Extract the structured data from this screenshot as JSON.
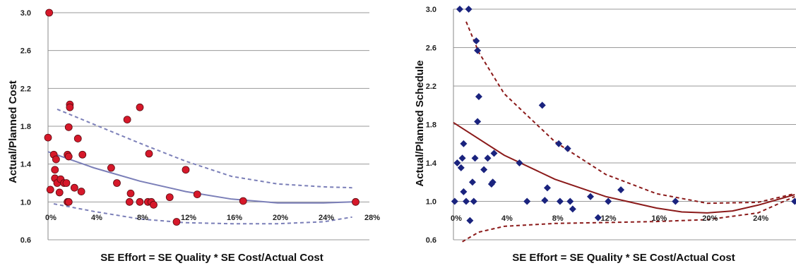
{
  "chart_data": [
    {
      "type": "scatter",
      "title": "",
      "xlabel": "SE Effort = SE Quality * SE Cost/Actual Cost",
      "ylabel": "Actual/Planned Cost",
      "xlim": [
        0,
        28
      ],
      "ylim": [
        0.6,
        3.0
      ],
      "x_ticks": [
        0,
        4,
        8,
        12,
        16,
        20,
        24,
        28
      ],
      "x_tick_labels": [
        "0%",
        "4%",
        "8%",
        "12%",
        "16%",
        "20%",
        "24%",
        "28%"
      ],
      "y_ticks": [
        0.6,
        1.0,
        1.4,
        1.8,
        2.2,
        2.6,
        3.0
      ],
      "y_tick_labels": [
        "0.6",
        "1.0",
        "1.4",
        "1.8",
        "2.2",
        "2.6",
        "3.0"
      ],
      "grid": "horizontal",
      "marker": "circle",
      "marker_color": "#d6182a",
      "fit_color": "#7b7fb8",
      "points": [
        {
          "x": 0.1,
          "y": 3.0
        },
        {
          "x": 0.0,
          "y": 1.68
        },
        {
          "x": 0.2,
          "y": 1.13
        },
        {
          "x": 0.5,
          "y": 1.5
        },
        {
          "x": 0.6,
          "y": 1.34
        },
        {
          "x": 0.6,
          "y": 1.25
        },
        {
          "x": 0.7,
          "y": 1.45
        },
        {
          "x": 0.8,
          "y": 1.2
        },
        {
          "x": 1.0,
          "y": 1.1
        },
        {
          "x": 1.1,
          "y": 1.24
        },
        {
          "x": 1.4,
          "y": 1.2
        },
        {
          "x": 1.6,
          "y": 1.2
        },
        {
          "x": 1.7,
          "y": 1.5
        },
        {
          "x": 1.7,
          "y": 1.0
        },
        {
          "x": 1.8,
          "y": 1.0
        },
        {
          "x": 1.8,
          "y": 1.79
        },
        {
          "x": 1.8,
          "y": 1.48
        },
        {
          "x": 1.9,
          "y": 2.03
        },
        {
          "x": 1.9,
          "y": 2.0
        },
        {
          "x": 2.3,
          "y": 1.15
        },
        {
          "x": 2.6,
          "y": 1.67
        },
        {
          "x": 2.9,
          "y": 1.11
        },
        {
          "x": 3.0,
          "y": 1.5
        },
        {
          "x": 5.5,
          "y": 1.36
        },
        {
          "x": 6.0,
          "y": 1.2
        },
        {
          "x": 6.9,
          "y": 1.87
        },
        {
          "x": 7.1,
          "y": 1.0
        },
        {
          "x": 7.2,
          "y": 1.09
        },
        {
          "x": 8.0,
          "y": 1.0
        },
        {
          "x": 8.0,
          "y": 2.0
        },
        {
          "x": 8.7,
          "y": 1.0
        },
        {
          "x": 8.8,
          "y": 1.51
        },
        {
          "x": 9.0,
          "y": 1.0
        },
        {
          "x": 9.2,
          "y": 0.97
        },
        {
          "x": 10.6,
          "y": 1.05
        },
        {
          "x": 11.2,
          "y": 0.79
        },
        {
          "x": 12.0,
          "y": 1.34
        },
        {
          "x": 13.0,
          "y": 1.08
        },
        {
          "x": 17.0,
          "y": 1.01
        },
        {
          "x": 26.8,
          "y": 1.0
        }
      ],
      "fit_line": [
        [
          0,
          1.53
        ],
        [
          4,
          1.36
        ],
        [
          8,
          1.22
        ],
        [
          12,
          1.11
        ],
        [
          16,
          1.03
        ],
        [
          20,
          0.99
        ],
        [
          24,
          0.99
        ],
        [
          26.5,
          1.0
        ]
      ],
      "upper_bound": [
        [
          0.8,
          1.98
        ],
        [
          4,
          1.82
        ],
        [
          8,
          1.62
        ],
        [
          12,
          1.43
        ],
        [
          16,
          1.27
        ],
        [
          20,
          1.19
        ],
        [
          24,
          1.16
        ],
        [
          26.5,
          1.15
        ]
      ],
      "lower_bound": [
        [
          0.5,
          0.98
        ],
        [
          4,
          0.9
        ],
        [
          8,
          0.82
        ],
        [
          12,
          0.78
        ],
        [
          16,
          0.77
        ],
        [
          20,
          0.77
        ],
        [
          24,
          0.79
        ],
        [
          26.5,
          0.84
        ]
      ]
    },
    {
      "type": "scatter",
      "title": "",
      "xlabel": "SE Effort = SE Quality * SE Cost/Actual Cost",
      "ylabel": "Actual/Planned Schedule",
      "xlim": [
        0,
        27
      ],
      "ylim": [
        0.6,
        3.0
      ],
      "x_ticks": [
        0,
        4,
        8,
        12,
        16,
        20,
        24
      ],
      "x_tick_labels": [
        "0%",
        "4%",
        "8%",
        "12%",
        "16%",
        "20%",
        "24%"
      ],
      "y_ticks": [
        0.6,
        1.0,
        1.4,
        1.8,
        2.2,
        2.6,
        3.0
      ],
      "y_tick_labels": [
        "0.6",
        "1.0",
        "1.4",
        "1.8",
        "2.2",
        "2.6",
        "3.0"
      ],
      "grid": "horizontal",
      "marker": "diamond",
      "marker_color": "#1a237e",
      "fit_color": "#8b1a1a",
      "points": [
        {
          "x": 0.1,
          "y": 1.0
        },
        {
          "x": 0.3,
          "y": 1.4
        },
        {
          "x": 0.5,
          "y": 3.0
        },
        {
          "x": 0.6,
          "y": 1.35
        },
        {
          "x": 0.7,
          "y": 1.45
        },
        {
          "x": 0.8,
          "y": 1.6
        },
        {
          "x": 0.8,
          "y": 1.1
        },
        {
          "x": 1.0,
          "y": 1.0
        },
        {
          "x": 1.2,
          "y": 3.0
        },
        {
          "x": 1.3,
          "y": 0.8
        },
        {
          "x": 1.5,
          "y": 1.2
        },
        {
          "x": 1.6,
          "y": 1.0
        },
        {
          "x": 1.7,
          "y": 1.45
        },
        {
          "x": 1.8,
          "y": 2.67
        },
        {
          "x": 1.9,
          "y": 2.57
        },
        {
          "x": 1.9,
          "y": 1.83
        },
        {
          "x": 2.0,
          "y": 2.09
        },
        {
          "x": 2.4,
          "y": 1.33
        },
        {
          "x": 2.7,
          "y": 1.45
        },
        {
          "x": 3.0,
          "y": 1.18
        },
        {
          "x": 3.1,
          "y": 1.2
        },
        {
          "x": 3.2,
          "y": 1.5
        },
        {
          "x": 5.2,
          "y": 1.4
        },
        {
          "x": 5.8,
          "y": 1.0
        },
        {
          "x": 7.0,
          "y": 2.0
        },
        {
          "x": 7.2,
          "y": 1.01
        },
        {
          "x": 7.4,
          "y": 1.14
        },
        {
          "x": 8.3,
          "y": 1.6
        },
        {
          "x": 8.4,
          "y": 1.0
        },
        {
          "x": 9.0,
          "y": 1.55
        },
        {
          "x": 9.2,
          "y": 1.0
        },
        {
          "x": 9.4,
          "y": 0.92
        },
        {
          "x": 10.8,
          "y": 1.05
        },
        {
          "x": 11.4,
          "y": 0.83
        },
        {
          "x": 12.2,
          "y": 1.0
        },
        {
          "x": 13.2,
          "y": 1.12
        },
        {
          "x": 17.5,
          "y": 1.0
        },
        {
          "x": 26.9,
          "y": 1.0
        }
      ],
      "fit_line": [
        [
          0,
          1.82
        ],
        [
          4,
          1.48
        ],
        [
          8,
          1.23
        ],
        [
          12,
          1.05
        ],
        [
          16,
          0.93
        ],
        [
          18,
          0.89
        ],
        [
          20,
          0.88
        ],
        [
          22,
          0.9
        ],
        [
          24,
          0.96
        ],
        [
          26.9,
          1.07
        ]
      ],
      "upper_bound": [
        [
          1.0,
          2.87
        ],
        [
          2,
          2.55
        ],
        [
          4,
          2.12
        ],
        [
          8,
          1.62
        ],
        [
          12,
          1.28
        ],
        [
          16,
          1.08
        ],
        [
          20,
          0.98
        ],
        [
          24,
          0.99
        ],
        [
          26.9,
          1.08
        ]
      ],
      "lower_bound": [
        [
          0.7,
          0.58
        ],
        [
          2,
          0.68
        ],
        [
          4,
          0.74
        ],
        [
          8,
          0.77
        ],
        [
          12,
          0.78
        ],
        [
          16,
          0.79
        ],
        [
          20,
          0.81
        ],
        [
          24,
          0.88
        ],
        [
          26.9,
          1.05
        ]
      ]
    }
  ]
}
